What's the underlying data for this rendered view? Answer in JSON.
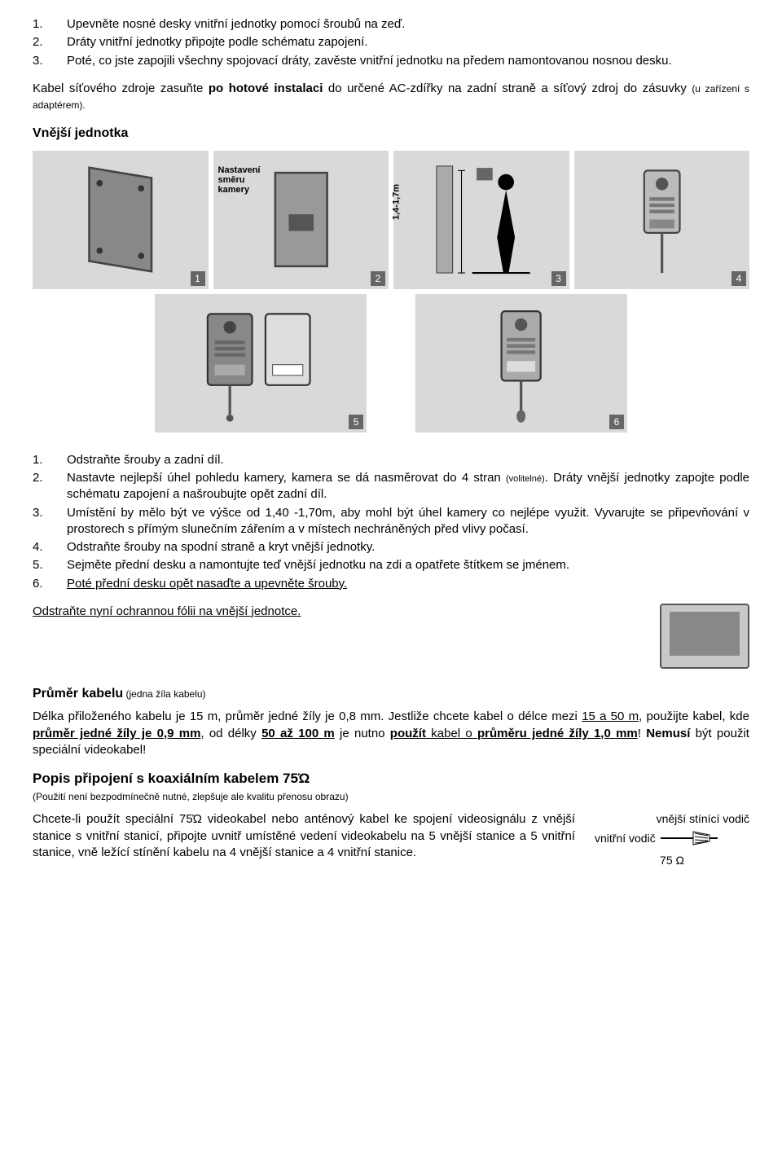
{
  "top_list": [
    {
      "n": "1.",
      "t": "Upevněte nosné desky vnitřní jednotky pomocí šroubů na zeď."
    },
    {
      "n": "2.",
      "t": "Dráty vnitřní jednotky připojte podle schématu zapojení."
    },
    {
      "n": "3.",
      "t": "Poté, co jste zapojili všechny spojovací dráty, zavěste vnitřní jednotku na předem namontovanou nosnou desku."
    }
  ],
  "cable_note_pre": "Kabel síťového zdroje zasuňte ",
  "cable_note_bold": "po hotové instalaci",
  "cable_note_post": " do určené AC-zdířky na zadní straně a síťový zdroj do zásuvky ",
  "cable_note_small": "(u zařízení s adaptérem).",
  "outer_unit_heading": "Vnější jednotka",
  "panels_row1": [
    {
      "badge": "1"
    },
    {
      "badge": "2",
      "label1": "Nastavení",
      "label2": "směru",
      "label3": "kamery"
    },
    {
      "badge": "3",
      "height_label": "1,4-1,7m"
    },
    {
      "badge": "4"
    }
  ],
  "panels_row2": [
    {
      "badge": "5"
    },
    {
      "badge": "6"
    }
  ],
  "outer_list": [
    {
      "n": "1.",
      "t": "Odstraňte šrouby a zadní díl."
    },
    {
      "n": "2.",
      "t_pre": "Nastavte nejlepší úhel pohledu kamery, kamera se dá nasměrovat do 4 stran ",
      "t_small": "(volitelné)",
      "t_post": ". Dráty vnější jednotky zapojte podle schématu zapojení a našroubujte opět zadní díl."
    },
    {
      "n": "3.",
      "t": "Umístění by mělo být ve výšce od 1,40 -1,70m, aby mohl být úhel kamery co nejlépe využit. Vyvarujte se připevňování v prostorech s přímým slunečním zářením a v místech nechráněných před vlivy počasí."
    },
    {
      "n": "4.",
      "t": "Odstraňte šrouby na spodní straně a kryt vnější jednotky."
    },
    {
      "n": "5.",
      "t": "Sejměte přední desku a namontujte teď vnější jednotku na zdi a opatřete štítkem se jménem."
    },
    {
      "n": "6.",
      "t": "Poté přední desku opět nasaďte a upevněte šrouby."
    }
  ],
  "foil_note": "Odstraňte nyní ochrannou fólii na vnější jednotce.",
  "diameter_heading": "Průměr kabelu",
  "diameter_sub": " (jedna žíla kabelu)",
  "diameter_para_parts": [
    {
      "t": "Délka přiloženého kabelu je 15 m, průměr jedné žíly je 0,8 mm. Jestliže chcete kabel o délce mezi "
    },
    {
      "t": "15 a 50 m",
      "u": true
    },
    {
      "t": ", použijte kabel, kde "
    },
    {
      "t": "průměr jedné žíly je 0,9 mm",
      "b": true,
      "u": true
    },
    {
      "t": ", od délky  "
    },
    {
      "t": "50 až 100 m",
      "b": true,
      "u": true
    },
    {
      "t": " je nutno "
    },
    {
      "t": "použít",
      "b": true,
      "u": true
    },
    {
      "t": " kabel o ",
      "u": true
    },
    {
      "t": "průměru jedné žíly 1,0 mm",
      "b": true,
      "u": true
    },
    {
      "t": "! "
    },
    {
      "t": "Nemusí",
      "b": true
    },
    {
      "t": " být použit speciální videokabel!"
    }
  ],
  "coax_heading": "Popis připojení s koaxiálním kabelem 75Ώ",
  "coax_sub": "(Použití není bezpodmínečně nutné, zlepšuje ale kvalitu přenosu obrazu)",
  "coax_para": "Chcete-li použít speciální 75Ώ videokabel nebo anténový kabel ke spojení videosignálu z vnější stanice s vnitřní stanicí, připojte uvnitř umístěné vedení videokabelu na 5 vnější stanice a 5 vnitřní stanice, vně ležící stínění kabelu na 4 vnější stanice a 4 vnitřní stanice.",
  "coax_outer": "vnější  stínící vodič",
  "coax_inner": "vnitřní vodič",
  "coax_ohm": "75 Ω",
  "colors": {
    "panel_bg": "#d9d9d9",
    "badge_bg": "#666",
    "page_bg": "#fff",
    "text": "#000"
  }
}
